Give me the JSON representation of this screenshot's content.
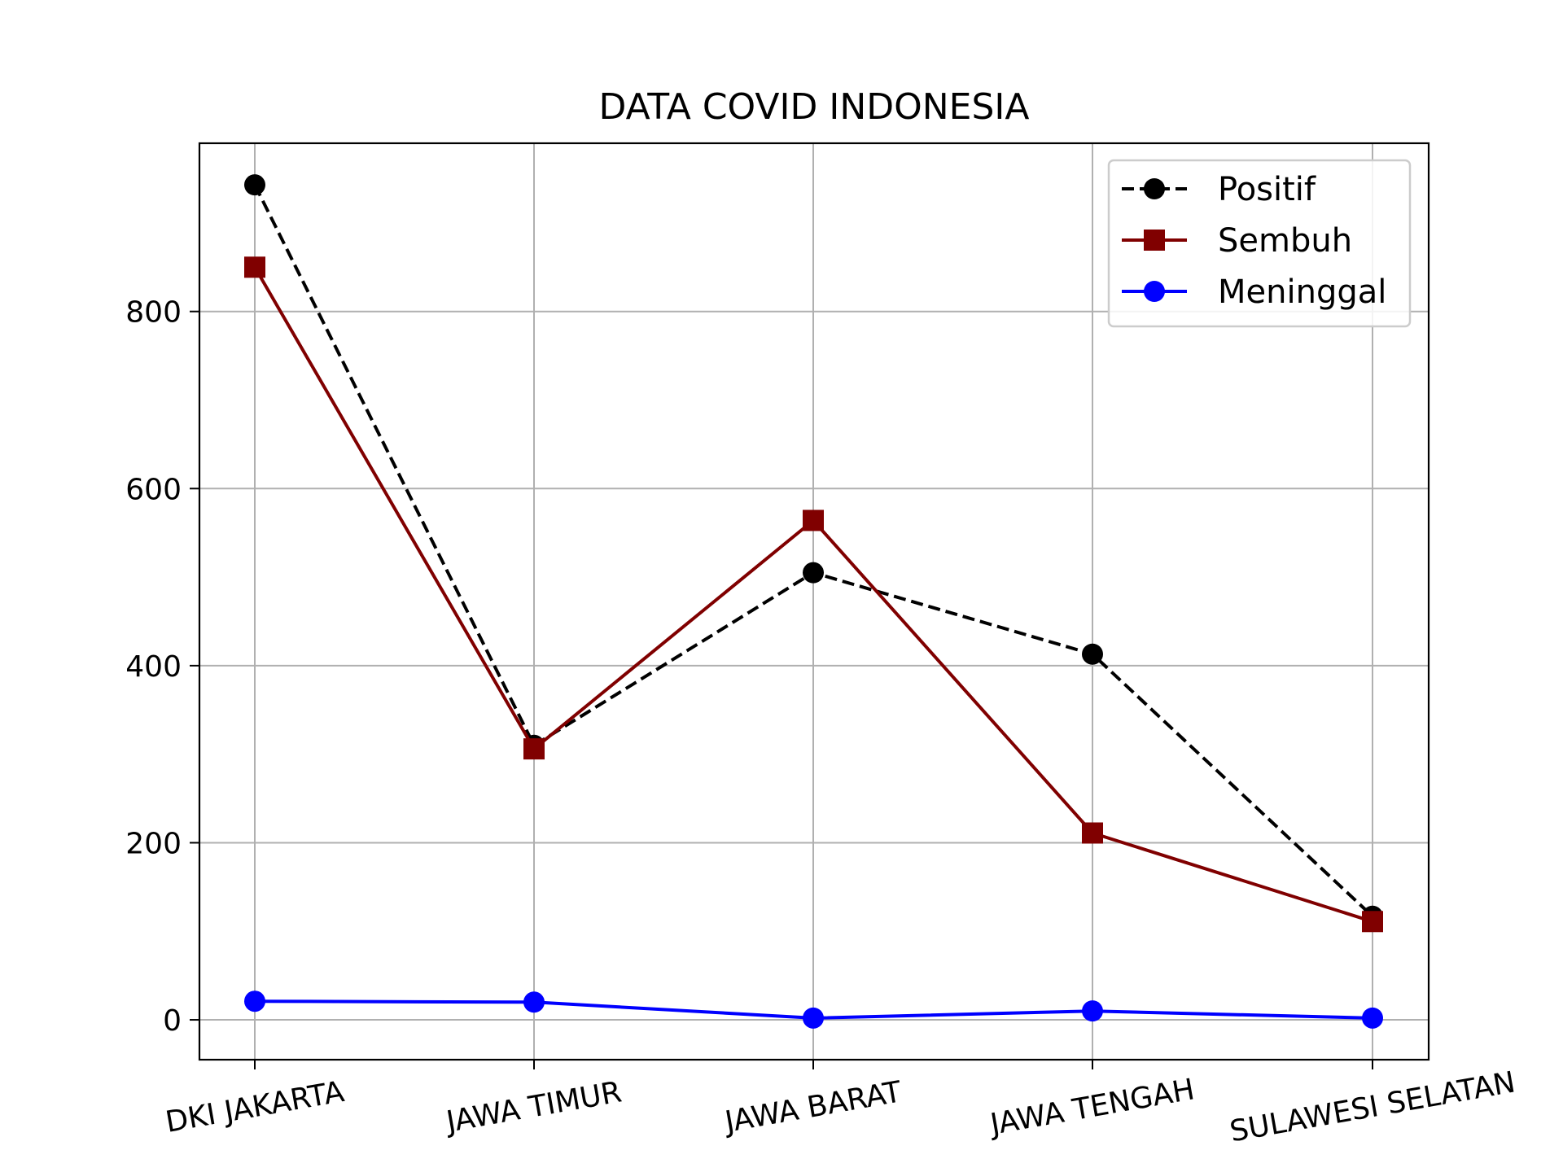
{
  "chart_data": {
    "type": "line",
    "title": "DATA COVID INDONESIA",
    "xlabel": "",
    "ylabel": "",
    "categories": [
      "DKI JAKARTA",
      "JAWA TIMUR",
      "JAWA BARAT",
      "JAWA TENGAH",
      "SULAWESI SELATAN"
    ],
    "yticks": [
      0,
      200,
      400,
      600,
      800
    ],
    "ylim": [
      -45,
      990
    ],
    "grid": true,
    "legend_position": "top-right",
    "series": [
      {
        "name": "Positif",
        "values": [
          943,
          310,
          505,
          413,
          117
        ],
        "color": "#000000",
        "line_style": "dashed",
        "marker": "circle"
      },
      {
        "name": "Sembuh",
        "values": [
          850,
          306,
          564,
          211,
          111
        ],
        "color": "#800000",
        "line_style": "solid",
        "marker": "square"
      },
      {
        "name": "Meninggal",
        "values": [
          21,
          20,
          2,
          10,
          2
        ],
        "color": "#0000ff",
        "line_style": "solid",
        "marker": "circle"
      }
    ]
  }
}
